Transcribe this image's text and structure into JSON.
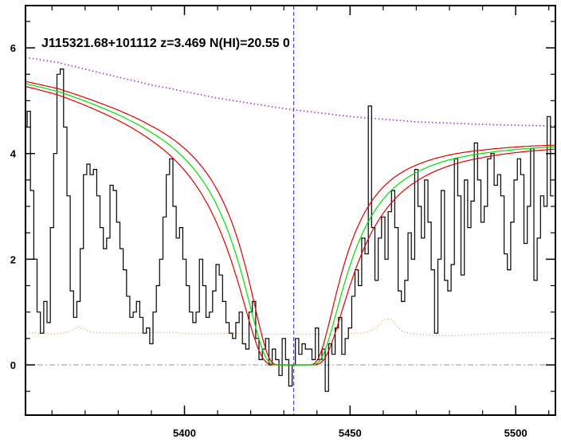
{
  "chart_data": {
    "type": "line",
    "title": "J115321.68+101112 z=3.469 N(HI)=20.55 0",
    "xlabel": "",
    "ylabel": "",
    "xlim": [
      5352,
      5512
    ],
    "ylim": [
      -0.95,
      6.8
    ],
    "x_ticks": [
      5400,
      5450,
      5500
    ],
    "y_ticks": [
      0,
      2,
      4,
      6
    ],
    "grid": false,
    "reference_lines": {
      "zero_level": 0,
      "line_center": 5433
    },
    "series": [
      {
        "role": "flux",
        "style": "step",
        "color": "#000000",
        "x": [
          5352,
          5353,
          5354,
          5355,
          5356,
          5357,
          5358,
          5359,
          5360,
          5361,
          5362,
          5363,
          5364,
          5365,
          5366,
          5367,
          5368,
          5369,
          5370,
          5371,
          5372,
          5373,
          5374,
          5375,
          5376,
          5377,
          5378,
          5379,
          5380,
          5381,
          5382,
          5383,
          5384,
          5385,
          5386,
          5387,
          5388,
          5389,
          5390,
          5391,
          5392,
          5393,
          5394,
          5395,
          5396,
          5397,
          5398,
          5399,
          5400,
          5401,
          5402,
          5403,
          5404,
          5405,
          5406,
          5407,
          5408,
          5409,
          5410,
          5411,
          5412,
          5413,
          5414,
          5415,
          5416,
          5417,
          5418,
          5419,
          5420,
          5421,
          5422,
          5423,
          5424,
          5425,
          5426,
          5427,
          5428,
          5429,
          5430,
          5431,
          5432,
          5433,
          5434,
          5435,
          5436,
          5437,
          5438,
          5439,
          5440,
          5441,
          5442,
          5443,
          5444,
          5445,
          5446,
          5447,
          5448,
          5449,
          5450,
          5451,
          5452,
          5453,
          5454,
          5455,
          5456,
          5457,
          5458,
          5459,
          5460,
          5461,
          5462,
          5463,
          5464,
          5465,
          5466,
          5467,
          5468,
          5469,
          5470,
          5471,
          5472,
          5473,
          5474,
          5475,
          5476,
          5477,
          5478,
          5479,
          5480,
          5481,
          5482,
          5483,
          5484,
          5485,
          5486,
          5487,
          5488,
          5489,
          5490,
          5491,
          5492,
          5493,
          5494,
          5495,
          5496,
          5497,
          5498,
          5499,
          5500,
          5501,
          5502,
          5503,
          5504,
          5505,
          5506,
          5507,
          5508,
          5509,
          5510,
          5511
        ],
        "values": [
          4.5,
          4.8,
          3.3,
          2.0,
          1.0,
          0.6,
          1.2,
          0.8,
          2.6,
          4.0,
          5.5,
          5.6,
          4.5,
          3.2,
          1.4,
          0.9,
          1.2,
          2.2,
          3.6,
          3.8,
          3.6,
          3.7,
          3.2,
          2.6,
          2.2,
          2.4,
          3.4,
          3.3,
          2.7,
          2.2,
          1.8,
          1.3,
          0.9,
          1.0,
          1.2,
          0.9,
          0.6,
          0.7,
          0.4,
          1.0,
          1.5,
          2.0,
          2.8,
          3.6,
          3.9,
          3.0,
          2.4,
          2.6,
          2.0,
          1.5,
          1.0,
          0.8,
          1.0,
          2.0,
          1.5,
          0.9,
          1.0,
          1.4,
          1.9,
          1.7,
          1.2,
          0.8,
          0.6,
          0.5,
          0.8,
          1.0,
          0.4,
          0.3,
          1.0,
          1.2,
          0.5,
          0.1,
          0.3,
          0.5,
          0.0,
          0.3,
          0.1,
          -0.2,
          0.5,
          0.1,
          -0.4,
          0.0,
          0.5,
          0.2,
          0.4,
          0.3,
          0.3,
          0.1,
          0.7,
          0.1,
          0.3,
          -0.5,
          0.4,
          0.2,
          0.7,
          0.9,
          0.2,
          0.5,
          0.7,
          1.3,
          1.8,
          1.5,
          2.4,
          2.1,
          4.9,
          2.6,
          1.6,
          2.4,
          2.8,
          2.0,
          2.9,
          3.3,
          2.6,
          1.4,
          1.2,
          1.6,
          2.5,
          2.0,
          3.7,
          3.0,
          2.4,
          3.5,
          2.7,
          1.8,
          0.6,
          2.0,
          3.3,
          1.6,
          1.4,
          1.9,
          3.9,
          3.2,
          1.7,
          3.5,
          2.6,
          3.1,
          4.2,
          3.5,
          2.7,
          3.0,
          3.9,
          4.0,
          3.4,
          3.6,
          3.2,
          2.1,
          1.8,
          2.7,
          3.5,
          3.9,
          3.6,
          2.3,
          3.0,
          4.1,
          1.6,
          2.4,
          3.2,
          3.0,
          4.7,
          3.2
        ]
      },
      {
        "role": "noise_sigma",
        "style": "dotted",
        "color": "#d9953a",
        "x": [
          5352,
          5360,
          5363,
          5365,
          5368,
          5372,
          5378,
          5385,
          5395,
          5405,
          5415,
          5425,
          5435,
          5445,
          5452,
          5455,
          5458,
          5460,
          5462,
          5464,
          5466,
          5470,
          5480,
          5495,
          5512
        ],
        "values": [
          0.62,
          0.58,
          0.6,
          0.62,
          0.72,
          0.62,
          0.6,
          0.6,
          0.62,
          0.58,
          0.6,
          0.58,
          0.58,
          0.58,
          0.6,
          0.62,
          0.7,
          0.85,
          0.88,
          0.75,
          0.62,
          0.58,
          0.55,
          0.6,
          0.62
        ]
      },
      {
        "role": "continuum",
        "style": "dotted",
        "color": "#9b2fe8",
        "x": [
          5352,
          5362,
          5375,
          5390,
          5410,
          5430,
          5450,
          5470,
          5490,
          5512
        ],
        "values": [
          5.82,
          5.72,
          5.52,
          5.3,
          5.05,
          4.85,
          4.7,
          4.6,
          4.55,
          4.52
        ]
      },
      {
        "role": "dla_fit",
        "name": "",
        "color": "#00e000",
        "center": 5433,
        "N_HI_log": 20.55
      },
      {
        "role": "dla_fit_upper",
        "color": "#e00000",
        "N_HI_log": 20.45
      },
      {
        "role": "dla_fit_lower",
        "color": "#e00000",
        "N_HI_log": 20.65
      }
    ]
  }
}
